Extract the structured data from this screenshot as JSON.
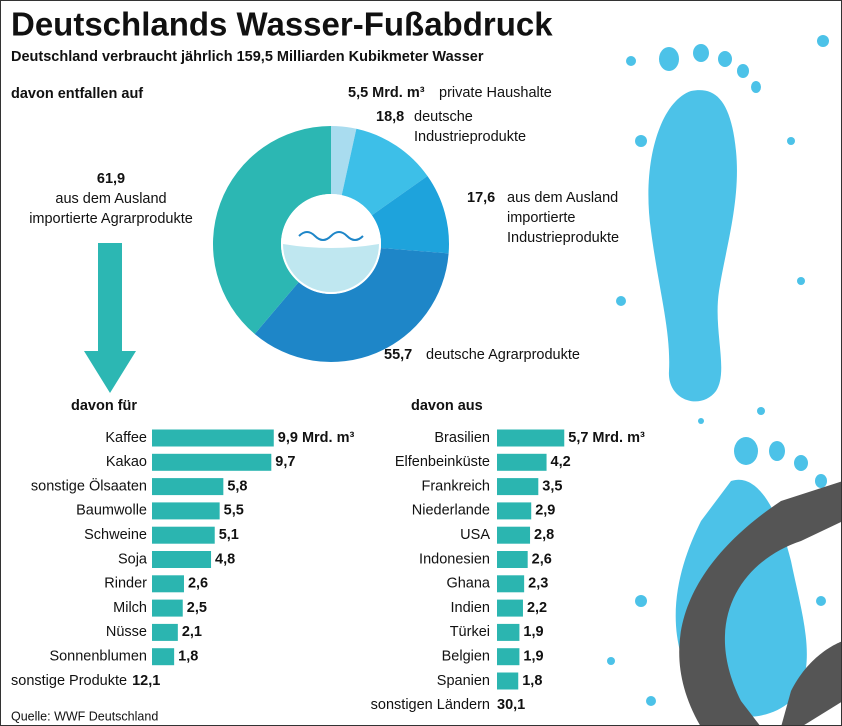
{
  "title": "Deutschlands Wasser-Fußabdruck",
  "subtitle": "Deutschland verbraucht jährlich 159,5 Milliarden Kubikmeter Wasser",
  "source": "Quelle: WWF Deutschland",
  "chart_data": [
    {
      "type": "pie",
      "title": "davon entfallen auf",
      "categories": [
        "private Haushalte",
        "deutsche Industrieprodukte",
        "aus dem Ausland importierte Industrieprodukte",
        "deutsche Agrarprodukte",
        "aus dem Ausland importierte Agrarprodukte"
      ],
      "values": [
        5.5,
        18.8,
        17.6,
        55.7,
        61.9
      ],
      "value_labels": [
        "5,5 Mrd. m³",
        "18,8",
        "17,6",
        "55,7",
        "61,9"
      ],
      "colors": [
        "#a9dcef",
        "#3dbfe8",
        "#1ea3dc",
        "#1e86c8",
        "#2cb7b3"
      ]
    },
    {
      "type": "barh",
      "title": "davon für",
      "color": "#2bb5b0",
      "categories": [
        "Kaffee",
        "Kakao",
        "sonstige Ölsaaten",
        "Baumwolle",
        "Schweine",
        "Soja",
        "Rinder",
        "Milch",
        "Nüsse",
        "Sonnenblumen"
      ],
      "values": [
        9.9,
        9.7,
        5.8,
        5.5,
        5.1,
        4.8,
        2.6,
        2.5,
        2.1,
        1.8
      ],
      "value_labels": [
        "9,9 Mrd. m³",
        "9,7",
        "5,8",
        "5,5",
        "5,1",
        "4,8",
        "2,6",
        "2,5",
        "2,1",
        "1,8"
      ],
      "other": {
        "label": "sonstige Produkte",
        "value": 12.1,
        "value_label": "12,1"
      }
    },
    {
      "type": "barh",
      "title": "davon aus",
      "color": "#2bb5b0",
      "categories": [
        "Brasilien",
        "Elfenbeinküste",
        "Frankreich",
        "Niederlande",
        "USA",
        "Indonesien",
        "Ghana",
        "Indien",
        "Türkei",
        "Belgien",
        "Spanien"
      ],
      "values": [
        5.7,
        4.2,
        3.5,
        2.9,
        2.8,
        2.6,
        2.3,
        2.2,
        1.9,
        1.9,
        1.8
      ],
      "value_labels": [
        "5,7 Mrd. m³",
        "4,2",
        "3,5",
        "2,9",
        "2,8",
        "2,6",
        "2,3",
        "2,2",
        "1,9",
        "1,9",
        "1,8"
      ],
      "other": {
        "label": "sonstigen Ländern",
        "value": 30.1,
        "value_label": "30,1"
      }
    }
  ]
}
